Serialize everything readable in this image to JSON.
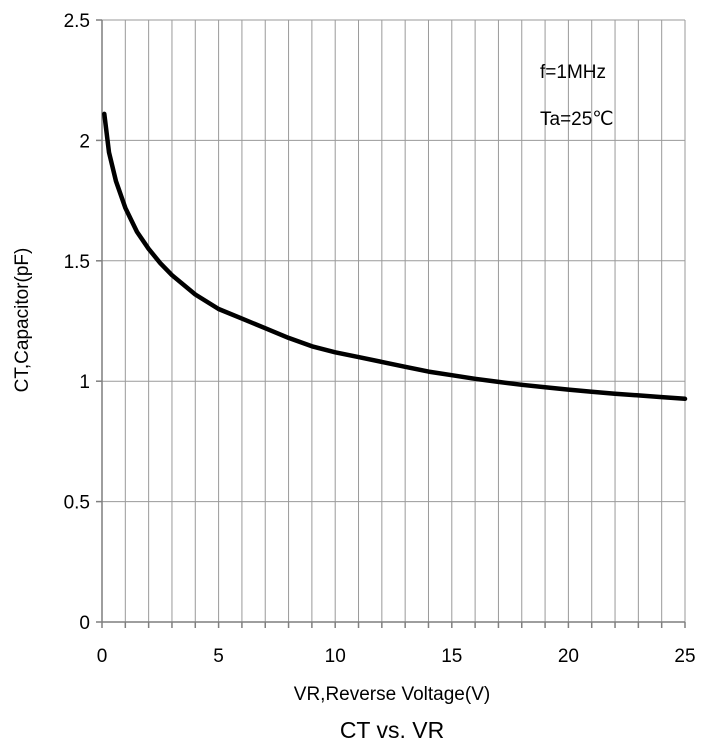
{
  "chart_data": {
    "type": "line",
    "title": "",
    "caption": "CT vs. VR",
    "xlabel": "VR,Reverse Voltage(V)",
    "ylabel": "CT,Capacitor(pF)",
    "xlim": [
      0,
      25
    ],
    "ylim": [
      0,
      2.5
    ],
    "x_ticks": [
      "0",
      "5",
      "10",
      "15",
      "20",
      "25"
    ],
    "y_ticks": [
      "0",
      "0.5",
      "1",
      "1.5",
      "2",
      "2.5"
    ],
    "x_minor_step": 1,
    "grid": true,
    "annotations": [
      "f=1MHz",
      "Ta=25℃"
    ],
    "line_color": "#000000",
    "series": [
      {
        "x": [
          0.1,
          0.3,
          0.6,
          1,
          1.5,
          2,
          2.5,
          3,
          4,
          5,
          6,
          7,
          8,
          9,
          10,
          11,
          12,
          13,
          14,
          15,
          16,
          17,
          18,
          19,
          20,
          21,
          22,
          23,
          24,
          25
        ],
        "values": [
          2.11,
          1.95,
          1.83,
          1.72,
          1.62,
          1.55,
          1.49,
          1.44,
          1.36,
          1.3,
          1.26,
          1.22,
          1.18,
          1.145,
          1.12,
          1.1,
          1.08,
          1.06,
          1.04,
          1.025,
          1.01,
          0.997,
          0.985,
          0.975,
          0.965,
          0.956,
          0.948,
          0.941,
          0.934,
          0.927
        ]
      }
    ]
  }
}
